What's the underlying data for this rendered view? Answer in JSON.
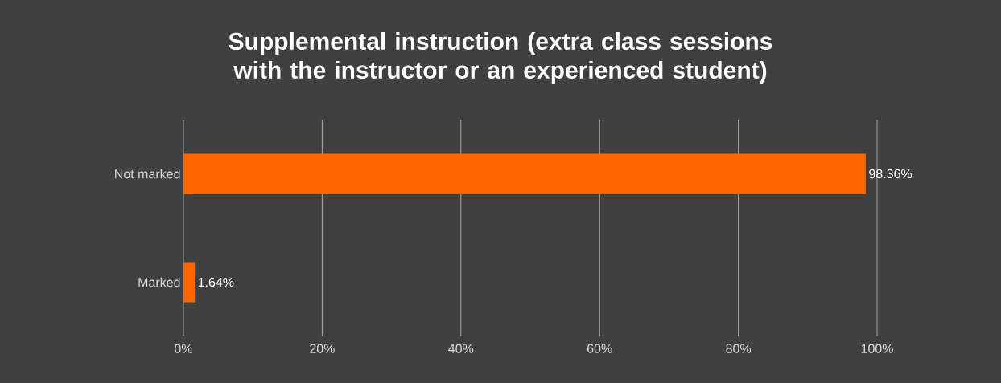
{
  "chart_data": {
    "type": "bar",
    "orientation": "horizontal",
    "title": "Supplemental instruction (extra class sessions with the instructor or an experienced student)",
    "categories": [
      "Not marked",
      "Marked"
    ],
    "values": [
      98.36,
      1.64
    ],
    "value_labels": [
      "98.36%",
      "1.64%"
    ],
    "color": "#ff6600",
    "xlim": [
      0,
      100
    ],
    "xticks": [
      {
        "value": 0,
        "label": "0%"
      },
      {
        "value": 20,
        "label": "20%"
      },
      {
        "value": 40,
        "label": "40%"
      },
      {
        "value": 60,
        "label": "60%"
      },
      {
        "value": 80,
        "label": "80%"
      },
      {
        "value": 100,
        "label": "100%"
      }
    ],
    "grid": "x"
  }
}
